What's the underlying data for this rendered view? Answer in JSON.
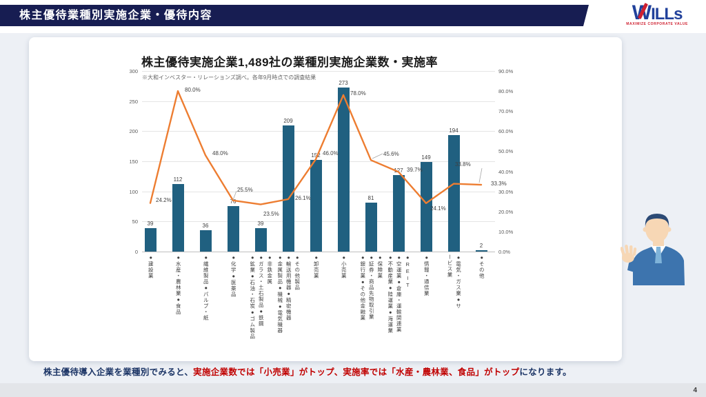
{
  "header": {
    "title": "株主優待業種別実施企業・優待内容",
    "logo": {
      "text_w": "W",
      "text_rest": "ILLs",
      "tagline": "MAXIMIZE CORPORATE VALUE"
    }
  },
  "page_number": "4",
  "chart_data": {
    "type": "combo_bar_line",
    "title": "株主優待実施企業1,489社の業種別実施企業数・実施率",
    "note": "※大和インベスター・リレーションズ調べ。各年9月時点での調査結果",
    "grid": true,
    "legend": "none",
    "categories": [
      {
        "display_lines": [
          "●建設業"
        ]
      },
      {
        "display_lines": [
          "●水産・農林業●食品"
        ]
      },
      {
        "display_lines": [
          "●繊維製品●パルプ・紙"
        ]
      },
      {
        "display_lines": [
          "●化学●医薬品"
        ]
      },
      {
        "display_lines": [
          "●非鉄金属",
          "●ガラス・土石製品●鉄鋼",
          "●鉱業●石油・石炭●ゴム製品"
        ]
      },
      {
        "display_lines": [
          "●その他製品",
          "●輸送用機器●精密機器",
          "●金属製品●機械●電気機器"
        ]
      },
      {
        "display_lines": [
          "●卸売業"
        ]
      },
      {
        "display_lines": [
          "●小売業"
        ]
      },
      {
        "display_lines": [
          "●保険業",
          "●証券・商品先物取引業",
          "●銀行業●その他金融業"
        ]
      },
      {
        "display_lines": [
          "●REIT",
          "●空運業●倉庫・運輸関連業",
          "●不動産業●陸運業●海運業"
        ]
      },
      {
        "display_lines": [
          "●情報・通信業"
        ]
      },
      {
        "display_lines": [
          "●電気・ガス業●サ",
          "ービス業"
        ]
      },
      {
        "display_lines": [
          "●その他"
        ]
      }
    ],
    "series": [
      {
        "name": "実施企業数",
        "type": "bar",
        "color": "#206080",
        "values": [
          39,
          112,
          36,
          76,
          39,
          209,
          152,
          273,
          81,
          127,
          149,
          194,
          2
        ],
        "labels": [
          "39",
          "112",
          "36",
          "76",
          "39",
          "209",
          "152",
          "273",
          "81",
          "127",
          "149",
          "194",
          "2"
        ]
      },
      {
        "name": "実施率",
        "type": "line",
        "color": "#ED7D31",
        "values": [
          24.2,
          80.0,
          48.0,
          25.5,
          23.5,
          26.1,
          46.0,
          78.0,
          45.6,
          39.7,
          24.1,
          33.8,
          33.3
        ],
        "labels": [
          "24.2%",
          "80.0%",
          "48.0%",
          "25.5%",
          "23.5%",
          "26.1%",
          "46.0%",
          "78.0%",
          "45.6%",
          "39.7%",
          "24.1%",
          "33.8%",
          "33.3%"
        ]
      }
    ],
    "left_axis": {
      "min": 0,
      "max": 300,
      "ticks": [
        "0",
        "50",
        "100",
        "150",
        "200",
        "250",
        "300"
      ]
    },
    "right_axis": {
      "min": 0,
      "max": 90,
      "ticks": [
        "0.0%",
        "10.0%",
        "20.0%",
        "30.0%",
        "40.0%",
        "50.0%",
        "60.0%",
        "70.0%",
        "80.0%",
        "90.0%"
      ]
    }
  },
  "footer": {
    "parts": {
      "p1": "株主優待導入企業を業種別でみると、",
      "p2": "実施企業数では「小売業」がトップ、実施率では「水産・農林業、食品」がトップ",
      "p3": "になります。"
    }
  }
}
